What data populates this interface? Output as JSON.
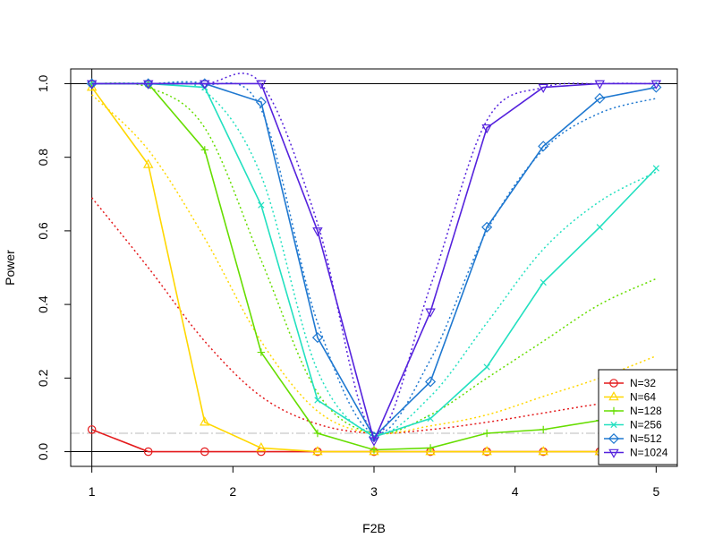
{
  "chart_data": {
    "type": "line",
    "xlabel": "F2B",
    "ylabel": "Power",
    "xlim": [
      0.85,
      5.15
    ],
    "ylim": [
      -0.04,
      1.04
    ],
    "x_ticks": [
      1,
      2,
      3,
      4,
      5
    ],
    "y_ticks": [
      0.0,
      0.2,
      0.4,
      0.6,
      0.8,
      1.0
    ],
    "x_tick_labels": [
      "1",
      "2",
      "3",
      "4",
      "5"
    ],
    "y_tick_labels": [
      "0.0",
      "0.2",
      "0.4",
      "0.6",
      "0.8",
      "1.0"
    ],
    "reference_lines": {
      "vertical_x": 1,
      "horizontal_y": [
        0,
        1
      ],
      "alpha_level": 0.05
    },
    "legend_position": "bottom-right",
    "x": [
      1.0,
      1.4,
      1.8,
      2.2,
      2.6,
      3.0,
      3.4,
      3.8,
      4.2,
      4.6,
      5.0
    ],
    "series": [
      {
        "name": "N=32",
        "color": "#e41a1c",
        "marker": "circle",
        "values": [
          0.06,
          0.0,
          0.0,
          0.0,
          0.0,
          0.0,
          0.0,
          0.0,
          0.0,
          0.0,
          0.0
        ],
        "theory": [
          0.69,
          0.5,
          0.3,
          0.15,
          0.075,
          0.05,
          0.06,
          0.08,
          0.105,
          0.13,
          0.15
        ]
      },
      {
        "name": "N=64",
        "color": "#ffd700",
        "marker": "triangle",
        "values": [
          0.99,
          0.78,
          0.08,
          0.01,
          0.0,
          0.0,
          0.0,
          0.0,
          0.0,
          0.0,
          0.0
        ],
        "theory": [
          0.97,
          0.82,
          0.58,
          0.3,
          0.11,
          0.05,
          0.07,
          0.1,
          0.15,
          0.2,
          0.26
        ]
      },
      {
        "name": "N=128",
        "color": "#66dd00",
        "marker": "plus",
        "values": [
          1.0,
          1.0,
          0.82,
          0.27,
          0.05,
          0.005,
          0.01,
          0.05,
          0.06,
          0.085,
          0.1
        ],
        "theory": [
          1.0,
          0.99,
          0.88,
          0.52,
          0.16,
          0.05,
          0.1,
          0.2,
          0.3,
          0.4,
          0.47
        ]
      },
      {
        "name": "N=256",
        "color": "#22e0c0",
        "marker": "x",
        "values": [
          1.0,
          1.0,
          0.99,
          0.67,
          0.14,
          0.04,
          0.09,
          0.23,
          0.46,
          0.61,
          0.77
        ],
        "theory": [
          1.0,
          1.0,
          0.98,
          0.75,
          0.22,
          0.05,
          0.15,
          0.35,
          0.55,
          0.68,
          0.76
        ]
      },
      {
        "name": "N=512",
        "color": "#1f78d0",
        "marker": "diamond",
        "values": [
          1.0,
          1.0,
          1.0,
          0.95,
          0.31,
          0.04,
          0.19,
          0.61,
          0.83,
          0.96,
          0.99
        ],
        "theory": [
          1.0,
          1.0,
          1.0,
          0.93,
          0.35,
          0.05,
          0.25,
          0.6,
          0.82,
          0.92,
          0.96
        ]
      },
      {
        "name": "N=1024",
        "color": "#5522dd",
        "marker": "triangle-down",
        "values": [
          1.0,
          1.0,
          1.0,
          1.0,
          0.6,
          0.03,
          0.38,
          0.88,
          0.99,
          1.0,
          1.0
        ],
        "theory": [
          1.0,
          1.0,
          1.0,
          1.0,
          0.62,
          0.05,
          0.45,
          0.9,
          0.99,
          1.0,
          1.0
        ]
      }
    ]
  }
}
